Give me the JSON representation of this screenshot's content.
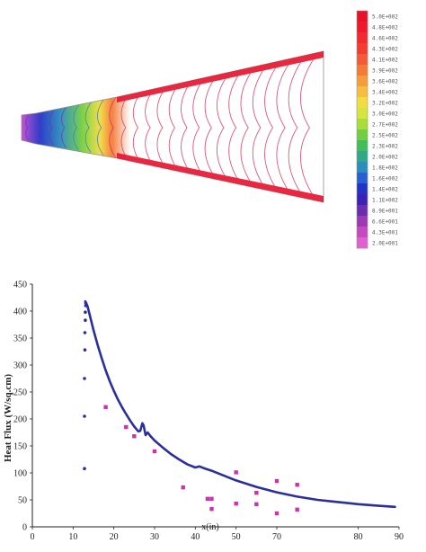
{
  "contour": {
    "legend_colors": [
      "#e8102a",
      "#f2172b",
      "#f42a2e",
      "#f43c33",
      "#f55a35",
      "#f57a38",
      "#f79c3c",
      "#f6bd40",
      "#f3dc40",
      "#d5e53d",
      "#a8dd3a",
      "#73cf3f",
      "#42bd57",
      "#2ea886",
      "#2a8dbb",
      "#2561d0",
      "#2233c8",
      "#3a22b6",
      "#6a2cb0",
      "#9b3ab4",
      "#c44ac2",
      "#e05fd2"
    ],
    "legend_labels": [
      "5.0E+002",
      "4.8E+002",
      "4.6E+002",
      "4.3E+002",
      "4.1E+002",
      "3.9E+002",
      "3.6E+002",
      "3.4E+002",
      "3.2E+002",
      "3.0E+002",
      "2.7E+002",
      "2.5E+002",
      "2.3E+002",
      "2.0E+002",
      "1.8E+002",
      "1.6E+002",
      "1.4E+002",
      "1.1E+002",
      "8.9E+001",
      "6.6E+001",
      "4.3E+001",
      "2.0E+001"
    ]
  },
  "chart_data": {
    "type": "line+scatter",
    "xlim": [
      0,
      90
    ],
    "ylim": [
      0,
      450
    ],
    "xticks": [
      "0",
      "10",
      "20",
      "30",
      "40",
      "50",
      "70",
      "80",
      "90"
    ],
    "yticks": [
      "0",
      "50",
      "100",
      "150",
      "200",
      "250",
      "300",
      "350",
      "400",
      "450"
    ],
    "xlabel_inline": "x(in)",
    "ylabel": "Heat Flux (W/sq.cm)",
    "line_color": "#2b2f9a",
    "line": {
      "x": [
        13,
        13.5,
        14,
        15,
        16,
        17,
        18,
        19,
        20,
        21,
        22,
        23,
        24,
        25,
        26,
        26.5,
        27,
        27.3,
        27.8,
        28.3,
        29,
        30,
        32,
        34,
        36,
        38,
        40,
        41,
        42,
        44,
        46,
        48,
        50,
        55,
        60,
        65,
        70,
        75,
        80,
        85,
        89
      ],
      "y": [
        418,
        410,
        395,
        365,
        338,
        313,
        290,
        270,
        252,
        236,
        222,
        209,
        197,
        186,
        177,
        178,
        192,
        188,
        170,
        175,
        168,
        160,
        147,
        135,
        125,
        116,
        110,
        112,
        109,
        104,
        98,
        92,
        86,
        74,
        64,
        56,
        50,
        46,
        42,
        39,
        37
      ]
    },
    "series": [
      {
        "name": "",
        "color": "#2b2f9a",
        "x": [
          12.8,
          12.8,
          12.8,
          12.9,
          12.9,
          13,
          13,
          13.1,
          13.1
        ],
        "y": [
          108,
          205,
          275,
          328,
          360,
          383,
          398,
          410,
          415
        ]
      },
      {
        "name": "",
        "color": "#cc33aa",
        "x": [
          18,
          23,
          25,
          30,
          37,
          43,
          44,
          44,
          50,
          50,
          55,
          55,
          60,
          60,
          65,
          65
        ],
        "y": [
          222,
          185,
          168,
          140,
          73,
          52,
          52,
          33,
          101,
          43,
          42,
          63,
          85,
          25,
          32,
          78
        ]
      }
    ]
  }
}
